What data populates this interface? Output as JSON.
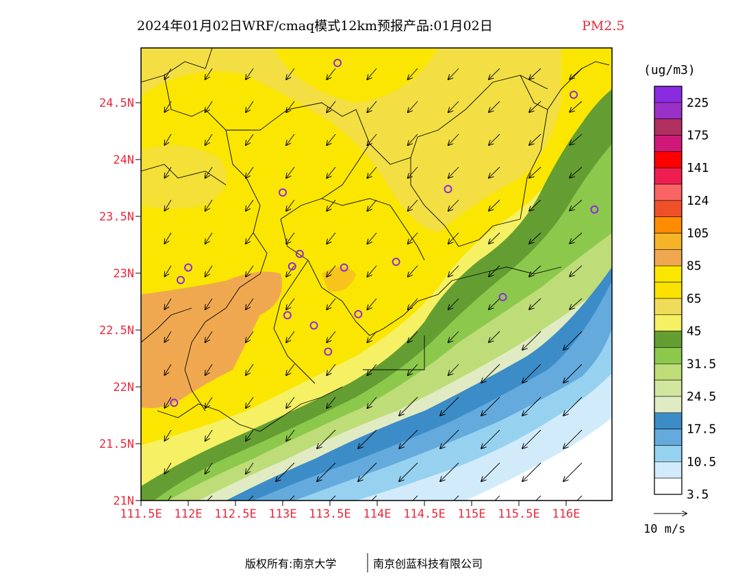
{
  "title": {
    "main": "2024年01月02日WRF/cmaq模式12km预报产品:01月02日",
    "species": "PM2.5",
    "species_color": "#e8283c"
  },
  "axes": {
    "lat_labels": [
      "24.5N",
      "24N",
      "23.5N",
      "23N",
      "22.5N",
      "22N",
      "21.5N",
      "21N"
    ],
    "lon_labels": [
      "111.5E",
      "112E",
      "112.5E",
      "113E",
      "113.5E",
      "114E",
      "114.5E",
      "115E",
      "115.5E",
      "116E"
    ],
    "label_color": "#e8283c"
  },
  "legend": {
    "unit": "(ug/m3)",
    "colors": [
      "#8a2be2",
      "#9b30c8",
      "#b03060",
      "#d01878",
      "#ff0000",
      "#f01e50",
      "#fa6464",
      "#f05028",
      "#ff8c00",
      "#f5b428",
      "#f0a850",
      "#fae600",
      "#fae100",
      "#f0dc5a",
      "#f5f064",
      "#649e32",
      "#8cc84b",
      "#bedc78",
      "#d2e6a0",
      "#e1ebc3",
      "#3c8cc8",
      "#64aadc",
      "#96d2f0",
      "#d2ebfa",
      "#ffffff"
    ],
    "labels": [
      "225",
      "175",
      "141",
      "124",
      "105",
      "85",
      "65",
      "45",
      "31.5",
      "24.5",
      "17.5",
      "10.5",
      "3.5"
    ],
    "wind_scale": "10 m/s"
  },
  "stations": [
    {
      "lon": 113.58,
      "lat": 24.85
    },
    {
      "lon": 116.08,
      "lat": 24.57
    },
    {
      "lon": 113.0,
      "lat": 23.71
    },
    {
      "lon": 114.75,
      "lat": 23.74
    },
    {
      "lon": 116.3,
      "lat": 23.56
    },
    {
      "lon": 113.18,
      "lat": 23.17
    },
    {
      "lon": 112.0,
      "lat": 23.05
    },
    {
      "lon": 113.1,
      "lat": 23.06
    },
    {
      "lon": 113.65,
      "lat": 23.05
    },
    {
      "lon": 114.2,
      "lat": 23.1
    },
    {
      "lon": 111.92,
      "lat": 22.94
    },
    {
      "lon": 115.33,
      "lat": 22.79
    },
    {
      "lon": 113.05,
      "lat": 22.63
    },
    {
      "lon": 113.8,
      "lat": 22.64
    },
    {
      "lon": 113.33,
      "lat": 22.54
    },
    {
      "lon": 113.48,
      "lat": 22.31
    },
    {
      "lon": 111.85,
      "lat": 21.86
    }
  ],
  "footer": {
    "copyright": "版权所有:南京大学",
    "company": "南京创蓝科技有限公司"
  }
}
